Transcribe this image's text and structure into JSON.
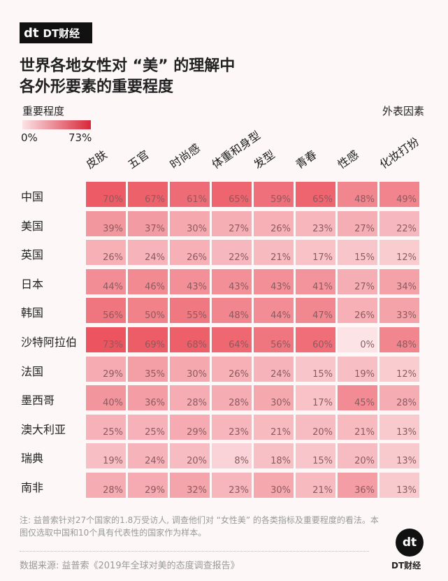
{
  "brand": {
    "logo_mark": "dt",
    "logo_text": "DT财经",
    "footer_mark": "dt",
    "footer_text": "DT财经"
  },
  "title_line1": "世界各地女性对 “美” 的理解中",
  "title_line2": "各外形要素的重要程度",
  "note": "注: 益普索针对27个国家的1.8万受访人, 调查他们对 “女性美” 的各类指标及重要程度的看法。本图仅选取中国和10个具有代表性的国家作为样本。",
  "source": "数据来源: 益普索《2019年全球对美的态度调查报告》",
  "chart_data": {
    "type": "heatmap",
    "title": "世界各地女性对 “美” 的理解中 各外形要素的重要程度",
    "legend_title": "重要程度",
    "legend_min": "0%",
    "legend_max": "73%",
    "range": [
      0,
      73
    ],
    "x_title": "外表因素",
    "columns": [
      "皮肤",
      "五官",
      "时尚感",
      "体重和身型",
      "发型",
      "青春",
      "性感",
      "化妆打扮"
    ],
    "rows": [
      "中国",
      "美国",
      "英国",
      "日本",
      "韩国",
      "沙特阿拉伯",
      "法国",
      "墨西哥",
      "澳大利亚",
      "瑞典",
      "南非"
    ],
    "values": [
      [
        70,
        67,
        61,
        65,
        59,
        65,
        48,
        49
      ],
      [
        39,
        37,
        30,
        27,
        26,
        23,
        27,
        22
      ],
      [
        26,
        24,
        26,
        22,
        21,
        17,
        15,
        12
      ],
      [
        44,
        46,
        43,
        43,
        43,
        41,
        27,
        34
      ],
      [
        56,
        50,
        55,
        48,
        44,
        47,
        26,
        33
      ],
      [
        73,
        69,
        68,
        64,
        56,
        60,
        0,
        48
      ],
      [
        29,
        35,
        30,
        26,
        24,
        15,
        19,
        12
      ],
      [
        40,
        36,
        28,
        28,
        30,
        17,
        45,
        28
      ],
      [
        25,
        25,
        29,
        23,
        21,
        20,
        21,
        13
      ],
      [
        19,
        24,
        20,
        8,
        18,
        15,
        20,
        13
      ],
      [
        28,
        29,
        32,
        23,
        30,
        21,
        36,
        13
      ]
    ],
    "colors": {
      "low": "#fbe3e6",
      "high": "#ec5560"
    }
  }
}
